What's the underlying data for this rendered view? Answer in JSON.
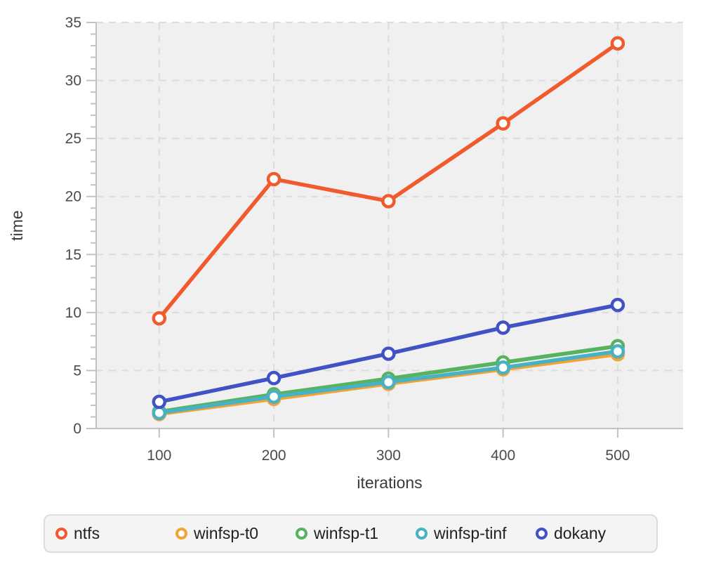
{
  "chart_data": {
    "type": "line",
    "title": "",
    "xlabel": "iterations",
    "ylabel": "time",
    "x": [
      100,
      200,
      300,
      400,
      500
    ],
    "series": [
      {
        "name": "ntfs",
        "color": "#f15a2d",
        "values": [
          9.5,
          21.5,
          19.6,
          26.3,
          33.2
        ]
      },
      {
        "name": "winfsp-t0",
        "color": "#f2a432",
        "values": [
          1.25,
          2.55,
          3.85,
          5.1,
          6.4
        ]
      },
      {
        "name": "winfsp-t1",
        "color": "#57b35f",
        "values": [
          1.45,
          2.95,
          4.3,
          5.7,
          7.1
        ]
      },
      {
        "name": "winfsp-tinf",
        "color": "#49b1c6",
        "values": [
          1.35,
          2.75,
          4.0,
          5.25,
          6.65
        ]
      },
      {
        "name": "dokany",
        "color": "#4152c4",
        "values": [
          2.3,
          4.35,
          6.45,
          8.7,
          10.65
        ]
      }
    ],
    "xlim": [
      45,
      557
    ],
    "ylim": [
      0,
      35
    ],
    "x_ticks": [
      100,
      200,
      300,
      400,
      500
    ],
    "y_ticks": [
      0,
      5,
      10,
      15,
      20,
      25,
      30,
      35
    ],
    "y_minor_step": 1,
    "grid": "dashed",
    "legend_position": "bottom"
  },
  "style": {
    "plot_bg": "#f0f0f0",
    "grid_color": "#dcdcdc",
    "axis_color": "#c2c2c4",
    "tick_text_color": "#4b4b4d",
    "title_text_color": "#3b3b3d",
    "legend_bg": "#f4f4f5",
    "legend_border": "#dcdcde",
    "legend_text_color": "#1f1f24",
    "marker_fill": "#ffffff"
  }
}
